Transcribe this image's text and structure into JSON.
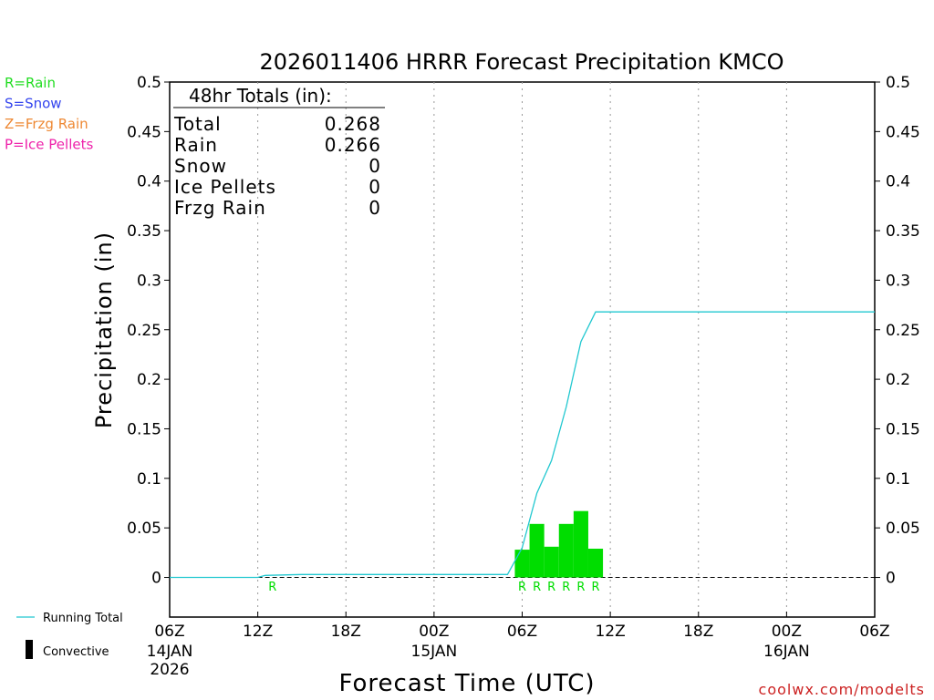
{
  "chart_data": {
    "type": "bar",
    "title": "2026011406 HRRR Forecast Precipitation KMCO",
    "xlabel": "Forecast Time (UTC)",
    "ylabel": "Precipitation (in)",
    "ylim": [
      -0.04,
      0.5
    ],
    "xlim_hours": [
      0,
      48
    ],
    "y_ticks": [
      "0",
      "0.05",
      "0.1",
      "0.15",
      "0.2",
      "0.25",
      "0.3",
      "0.35",
      "0.4",
      "0.45",
      "0.5"
    ],
    "y_tick_values": [
      0,
      0.05,
      0.1,
      0.15,
      0.2,
      0.25,
      0.3,
      0.35,
      0.4,
      0.45,
      0.5
    ],
    "x_ticks": [
      {
        "hour": 0,
        "label": "06Z",
        "sub": [
          "14JAN",
          "2026"
        ]
      },
      {
        "hour": 6,
        "label": "12Z",
        "sub": []
      },
      {
        "hour": 12,
        "label": "18Z",
        "sub": []
      },
      {
        "hour": 18,
        "label": "00Z",
        "sub": [
          "15JAN"
        ]
      },
      {
        "hour": 24,
        "label": "06Z",
        "sub": []
      },
      {
        "hour": 30,
        "label": "12Z",
        "sub": []
      },
      {
        "hour": 36,
        "label": "18Z",
        "sub": []
      },
      {
        "hour": 42,
        "label": "00Z",
        "sub": [
          "16JAN"
        ]
      },
      {
        "hour": 48,
        "label": "06Z",
        "sub": []
      }
    ],
    "bars": {
      "name": "Hourly Rain",
      "color": "#00dd00",
      "hours": [
        24,
        25,
        26,
        27,
        28,
        29
      ],
      "values": [
        0.028,
        0.054,
        0.031,
        0.054,
        0.067,
        0.029
      ]
    },
    "running_total": {
      "name": "Running Total",
      "color": "#22c8d0",
      "hours": [
        0,
        6,
        6.5,
        9,
        18,
        22,
        23,
        24,
        25,
        26,
        27,
        28,
        29,
        30,
        31,
        48
      ],
      "values": [
        0,
        0,
        0.002,
        0.003,
        0.003,
        0.003,
        0.003,
        0.03,
        0.085,
        0.118,
        0.172,
        0.238,
        0.268,
        0.268,
        0.268,
        0.268
      ]
    },
    "ptype_markers": {
      "color": "#00dd00",
      "hours": [
        7,
        24,
        25,
        26,
        27,
        28,
        29
      ],
      "labels": [
        "R",
        "R",
        "R",
        "R",
        "R",
        "R",
        "R"
      ]
    },
    "totals_box": {
      "header": "48hr Totals (in):",
      "rows": [
        {
          "label": "Total",
          "value": "0.268"
        },
        {
          "label": "Rain",
          "value": "0.266"
        },
        {
          "label": "Snow",
          "value": "0"
        },
        {
          "label": "Ice Pellets",
          "value": "0"
        },
        {
          "label": "Frzg Rain",
          "value": "0"
        }
      ]
    },
    "ptype_legend": [
      {
        "text": "R=Rain",
        "color": "#22dd22"
      },
      {
        "text": "S=Snow",
        "color": "#3344ee"
      },
      {
        "text": "Z=Frzg Rain",
        "color": "#ee8833"
      },
      {
        "text": "P=Ice Pellets",
        "color": "#ee22aa"
      }
    ],
    "series_legend": {
      "running_total": "Running Total",
      "convective": "Convective"
    },
    "credit": "coolwx.com/modelts",
    "credit_color": "#cc2222"
  }
}
